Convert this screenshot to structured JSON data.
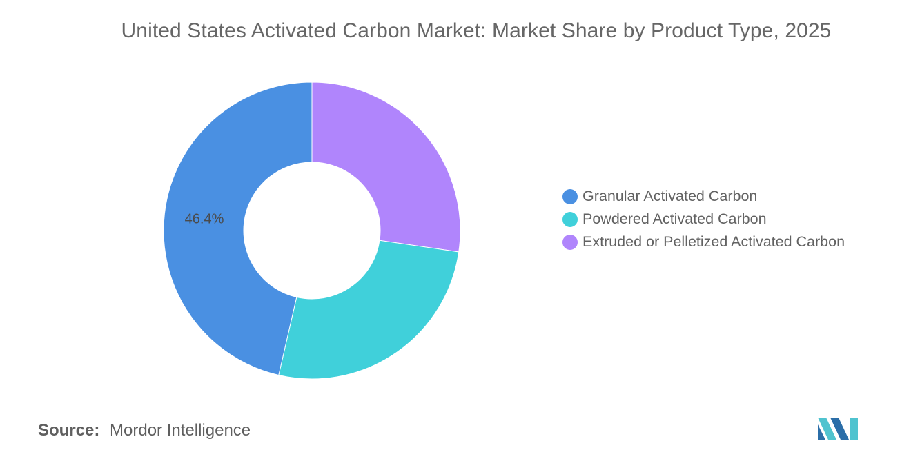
{
  "chart_data": {
    "type": "pie",
    "title": "United States Activated Carbon Market: Market Share by Product Type, 2025",
    "donut": true,
    "legend_position": "right",
    "categories": [
      "Granular Activated Carbon",
      "Powdered Activated Carbon",
      "Extruded or Pelletized Activated Carbon"
    ],
    "values": [
      46.4,
      26.3,
      27.3
    ],
    "colors": [
      "#4a90e2",
      "#40d0da",
      "#b085fc"
    ],
    "data_labels": [
      "46.4%",
      "",
      ""
    ]
  },
  "source": {
    "label": "Source:",
    "value": "Mordor Intelligence"
  },
  "logo": {
    "name": "mordor-intelligence-logo",
    "colors": [
      "#2b6ea8",
      "#4fc3cf"
    ]
  }
}
